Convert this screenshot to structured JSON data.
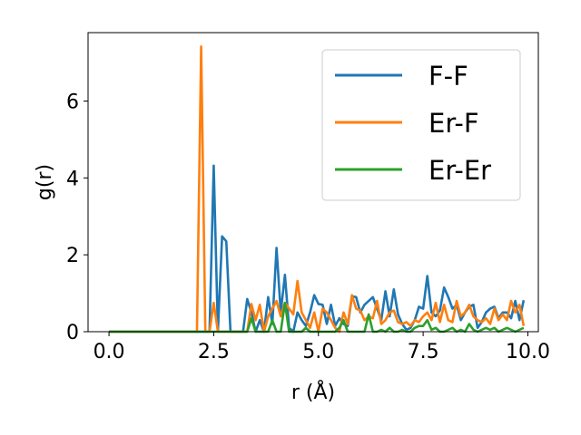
{
  "chart_data": {
    "type": "line",
    "title": "",
    "xlabel": "r (Å)",
    "ylabel": "g(r)",
    "xlim": [
      -0.5,
      10.25
    ],
    "ylim": [
      0,
      7.78
    ],
    "xticks": [
      0.0,
      2.5,
      5.0,
      7.5,
      10.0
    ],
    "xtick_labels": [
      "0.0",
      "2.5",
      "5.0",
      "7.5",
      "10.0"
    ],
    "yticks": [
      0,
      2,
      4,
      6
    ],
    "ytick_labels": [
      "0",
      "2",
      "4",
      "6"
    ],
    "grid": false,
    "legend_position": "top-right",
    "series": [
      {
        "name": "F-F",
        "color": "#1f77b4",
        "x": [
          0.0,
          0.1,
          0.2,
          0.3,
          0.4,
          0.5,
          0.6,
          0.7,
          0.8,
          0.9,
          1.0,
          1.1,
          1.2,
          1.3,
          1.4,
          1.5,
          1.6,
          1.7,
          1.8,
          1.9,
          2.0,
          2.1,
          2.2,
          2.3,
          2.4,
          2.5,
          2.6,
          2.7,
          2.8,
          2.9,
          3.0,
          3.1,
          3.2,
          3.3,
          3.4,
          3.5,
          3.6,
          3.7,
          3.8,
          3.9,
          4.0,
          4.1,
          4.2,
          4.3,
          4.4,
          4.5,
          4.6,
          4.7,
          4.8,
          4.9,
          5.0,
          5.1,
          5.2,
          5.3,
          5.4,
          5.5,
          5.6,
          5.7,
          5.8,
          5.9,
          6.0,
          6.1,
          6.2,
          6.3,
          6.4,
          6.5,
          6.6,
          6.7,
          6.8,
          6.9,
          7.0,
          7.1,
          7.2,
          7.3,
          7.4,
          7.5,
          7.6,
          7.7,
          7.8,
          7.9,
          8.0,
          8.1,
          8.2,
          8.3,
          8.4,
          8.5,
          8.6,
          8.7,
          8.8,
          8.9,
          9.0,
          9.1,
          9.2,
          9.3,
          9.4,
          9.5,
          9.6,
          9.7,
          9.8,
          9.9
        ],
        "y": [
          0,
          0,
          0,
          0,
          0,
          0,
          0,
          0,
          0,
          0,
          0,
          0,
          0,
          0,
          0,
          0,
          0,
          0,
          0,
          0,
          0,
          0,
          0,
          0,
          0,
          4.32,
          0,
          2.48,
          2.35,
          0,
          0,
          0,
          0,
          0.85,
          0.5,
          0,
          0.3,
          0,
          0.9,
          0.2,
          2.18,
          0.5,
          1.48,
          0.1,
          0,
          0.5,
          0.3,
          0.15,
          0.5,
          0.95,
          0.72,
          0.7,
          0.2,
          0.7,
          0.15,
          0.35,
          0.2,
          0.15,
          0.92,
          0.9,
          0.5,
          0.7,
          0.8,
          0.9,
          0.6,
          0.3,
          1.05,
          0.4,
          1.1,
          0.45,
          0.2,
          0.05,
          0.1,
          0.3,
          0.65,
          0.6,
          1.45,
          0.5,
          0.4,
          0.55,
          1.15,
          0.9,
          0.6,
          0.7,
          0.3,
          0.5,
          0.65,
          0.7,
          0.1,
          0.25,
          0.5,
          0.6,
          0.65,
          0.35,
          0.5,
          0.5,
          0.35,
          0.8,
          0.3,
          0.82
        ]
      },
      {
        "name": "Er-F",
        "color": "#ff7f0e",
        "x": [
          0.0,
          0.1,
          0.2,
          0.3,
          0.4,
          0.5,
          0.6,
          0.7,
          0.8,
          0.9,
          1.0,
          1.1,
          1.2,
          1.3,
          1.4,
          1.5,
          1.6,
          1.7,
          1.8,
          1.9,
          2.0,
          2.1,
          2.2,
          2.3,
          2.4,
          2.5,
          2.6,
          2.7,
          2.8,
          2.9,
          3.0,
          3.1,
          3.2,
          3.3,
          3.4,
          3.5,
          3.6,
          3.7,
          3.8,
          3.9,
          4.0,
          4.1,
          4.2,
          4.3,
          4.4,
          4.5,
          4.6,
          4.7,
          4.8,
          4.9,
          5.0,
          5.1,
          5.2,
          5.3,
          5.4,
          5.5,
          5.6,
          5.7,
          5.8,
          5.9,
          6.0,
          6.1,
          6.2,
          6.3,
          6.4,
          6.5,
          6.6,
          6.7,
          6.8,
          6.9,
          7.0,
          7.1,
          7.2,
          7.3,
          7.4,
          7.5,
          7.6,
          7.7,
          7.8,
          7.9,
          8.0,
          8.1,
          8.2,
          8.3,
          8.4,
          8.5,
          8.6,
          8.7,
          8.8,
          8.9,
          9.0,
          9.1,
          9.2,
          9.3,
          9.4,
          9.5,
          9.6,
          9.7,
          9.8,
          9.9
        ],
        "y": [
          0,
          0,
          0,
          0,
          0,
          0,
          0,
          0,
          0,
          0,
          0,
          0,
          0,
          0,
          0,
          0,
          0,
          0,
          0,
          0,
          0,
          0,
          7.42,
          0,
          0,
          0.75,
          0,
          0,
          0,
          0,
          0,
          0,
          0,
          0,
          0.72,
          0.3,
          0.7,
          0,
          0.4,
          0.6,
          0.8,
          0.4,
          0.75,
          0.6,
          0.45,
          1.32,
          0.5,
          0.3,
          0.1,
          0.5,
          0,
          0.6,
          0.5,
          0.3,
          0.1,
          0,
          0.5,
          0.2,
          0.95,
          0.6,
          0.55,
          0.3,
          0.4,
          0.35,
          0.8,
          0.2,
          0.3,
          0.5,
          0.55,
          0.25,
          0.2,
          0.25,
          0.15,
          0.3,
          0.25,
          0.4,
          0.5,
          0.3,
          0.75,
          0.25,
          0.7,
          0.3,
          0.25,
          0.8,
          0.4,
          0.5,
          0.7,
          0.4,
          0.3,
          0.25,
          0.35,
          0.2,
          0.6,
          0.3,
          0.45,
          0.3,
          0.8,
          0.5,
          0.7,
          0.15
        ]
      },
      {
        "name": "Er-Er",
        "color": "#2ca02c",
        "x": [
          0.0,
          0.1,
          0.2,
          0.3,
          0.4,
          0.5,
          0.6,
          0.7,
          0.8,
          0.9,
          1.0,
          1.1,
          1.2,
          1.3,
          1.4,
          1.5,
          1.6,
          1.7,
          1.8,
          1.9,
          2.0,
          2.1,
          2.2,
          2.3,
          2.4,
          2.5,
          2.6,
          2.7,
          2.8,
          2.9,
          3.0,
          3.1,
          3.2,
          3.3,
          3.4,
          3.5,
          3.6,
          3.7,
          3.8,
          3.9,
          4.0,
          4.1,
          4.2,
          4.3,
          4.4,
          4.5,
          4.6,
          4.7,
          4.8,
          4.9,
          5.0,
          5.1,
          5.2,
          5.3,
          5.4,
          5.5,
          5.6,
          5.7,
          5.8,
          5.9,
          6.0,
          6.1,
          6.2,
          6.3,
          6.4,
          6.5,
          6.6,
          6.7,
          6.8,
          6.9,
          7.0,
          7.1,
          7.2,
          7.3,
          7.4,
          7.5,
          7.6,
          7.7,
          7.8,
          7.9,
          8.0,
          8.1,
          8.2,
          8.3,
          8.4,
          8.5,
          8.6,
          8.7,
          8.8,
          8.9,
          9.0,
          9.1,
          9.2,
          9.3,
          9.4,
          9.5,
          9.6,
          9.7,
          9.8,
          9.9
        ],
        "y": [
          0,
          0,
          0,
          0,
          0,
          0,
          0,
          0,
          0,
          0,
          0,
          0,
          0,
          0,
          0,
          0,
          0,
          0,
          0,
          0,
          0,
          0,
          0,
          0,
          0,
          0,
          0,
          0,
          0,
          0,
          0,
          0,
          0,
          0,
          0.35,
          0,
          0,
          0,
          0,
          0.3,
          0,
          0,
          0.75,
          0,
          0,
          0,
          0,
          0.1,
          0,
          0,
          0,
          0,
          0,
          0,
          0,
          0.1,
          0.3,
          0,
          0,
          0,
          0,
          0,
          0.45,
          0,
          0,
          0.05,
          0,
          0.1,
          0,
          0,
          0.05,
          0,
          0,
          0.1,
          0.15,
          0.15,
          0.3,
          0.05,
          0.1,
          0,
          0,
          0.05,
          0.1,
          0,
          0.05,
          0,
          0.2,
          0.05,
          0,
          0.05,
          0.1,
          0.05,
          0.1,
          0,
          0.05,
          0.1,
          0.05,
          0,
          0.05,
          0.1
        ]
      }
    ]
  }
}
